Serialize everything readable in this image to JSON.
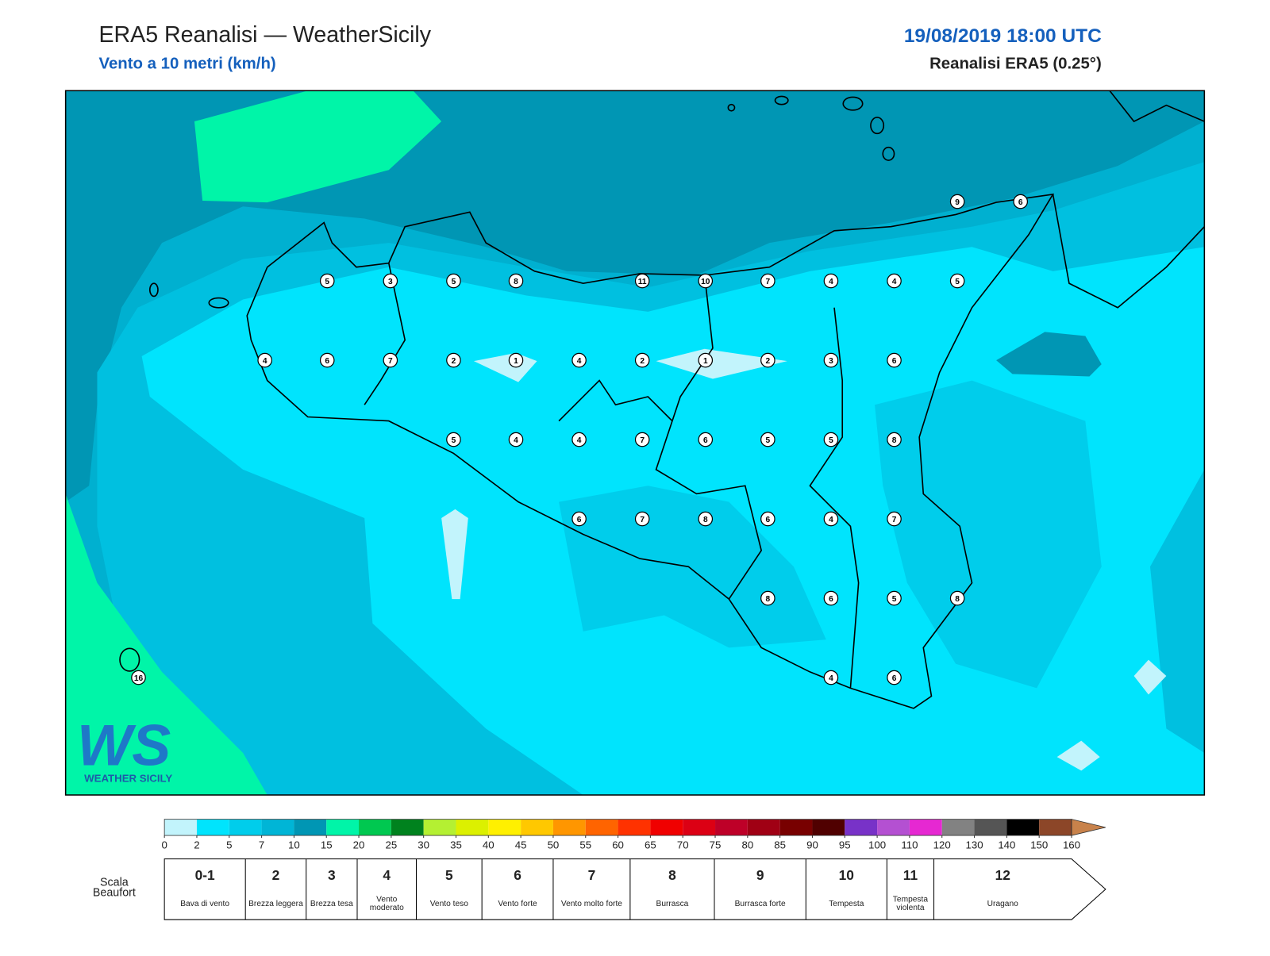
{
  "header": {
    "title": "ERA5 Reanalisi — WeatherSicily",
    "subtitle": "Vento a 10 metri (km/h)",
    "date": "19/08/2019 18:00 UTC",
    "source": "Reanalisi ERA5 (0.25°)"
  },
  "stations": [
    9,
    6,
    5,
    3,
    5,
    8,
    11,
    10,
    7,
    4,
    4,
    5,
    4,
    6,
    7,
    2,
    1,
    4,
    2,
    1,
    2,
    3,
    6,
    5,
    4,
    4,
    7,
    6,
    5,
    5,
    8,
    6,
    7,
    8,
    6,
    4,
    7,
    8,
    6,
    5,
    8,
    16,
    4,
    6
  ],
  "logo": {
    "mark": "WS",
    "name": "WEATHER SICILY"
  },
  "colorbar": {
    "ticks": [
      0,
      2,
      5,
      7,
      10,
      15,
      20,
      25,
      30,
      35,
      40,
      45,
      50,
      55,
      60,
      65,
      70,
      75,
      80,
      85,
      90,
      95,
      100,
      110,
      120,
      130,
      140,
      150,
      160
    ],
    "colors": [
      "#c2f4fc",
      "#00e4fd",
      "#00cdeb",
      "#00b5d6",
      "#0096b4",
      "#00f5a8",
      "#00c850",
      "#00821e",
      "#b4f032",
      "#dcf000",
      "#fff000",
      "#ffc800",
      "#ff9600",
      "#ff6400",
      "#ff3200",
      "#f00000",
      "#dc0014",
      "#be0028",
      "#a00014",
      "#780000",
      "#500000",
      "#7832c8",
      "#b450d2",
      "#e628d2",
      "#828282",
      "#555555",
      "#000000",
      "#8c4628"
    ],
    "extend_color": "#c8824b"
  },
  "beaufort": {
    "label": "Scala Beaufort",
    "levels": [
      {
        "force": "0-1",
        "description": "Bava di vento"
      },
      {
        "force": "2",
        "description": "Brezza leggera"
      },
      {
        "force": "3",
        "description": "Brezza tesa"
      },
      {
        "force": "4",
        "description": "Vento moderato"
      },
      {
        "force": "5",
        "description": "Vento teso"
      },
      {
        "force": "6",
        "description": "Vento forte"
      },
      {
        "force": "7",
        "description": "Vento molto forte"
      },
      {
        "force": "8",
        "description": "Burrasca"
      },
      {
        "force": "9",
        "description": "Burrasca forte"
      },
      {
        "force": "10",
        "description": "Tempesta"
      },
      {
        "force": "11",
        "description": "Tempesta violenta"
      },
      {
        "force": "12",
        "description": "Uragano"
      }
    ]
  }
}
